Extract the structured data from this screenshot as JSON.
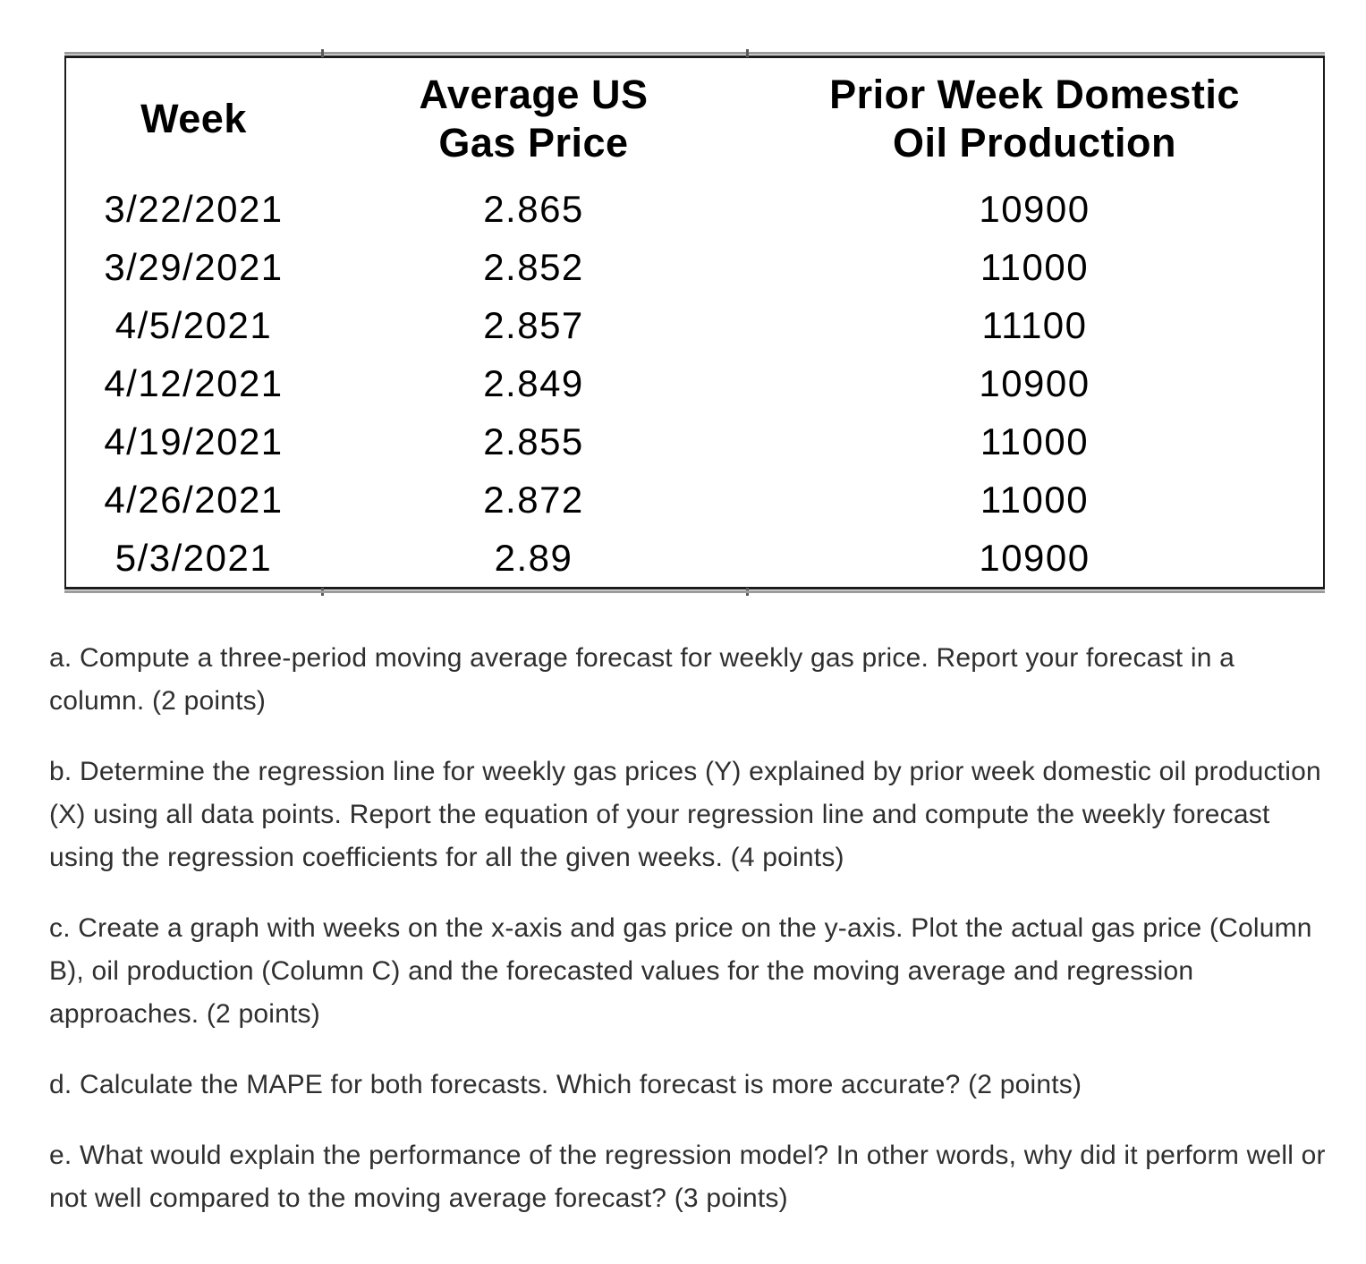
{
  "table": {
    "headers": [
      "Week",
      "Average US\nGas Price",
      "Prior Week Domestic\nOil Production"
    ],
    "rows": [
      [
        "3/22/2021",
        "2.865",
        "10900"
      ],
      [
        "3/29/2021",
        "2.852",
        "11000"
      ],
      [
        "4/5/2021",
        "2.857",
        "11100"
      ],
      [
        "4/12/2021",
        "2.849",
        "10900"
      ],
      [
        "4/19/2021",
        "2.855",
        "11000"
      ],
      [
        "4/26/2021",
        "2.872",
        "11000"
      ],
      [
        "5/3/2021",
        "2.89",
        "10900"
      ]
    ]
  },
  "questions": [
    "a. Compute a three-period moving average forecast for weekly gas price. Report your forecast in a column. (2 points)",
    "b. Determine the regression line for weekly gas prices (Y) explained by prior week domestic oil production (X) using all data points. Report the equation of your regression line and compute the weekly forecast using the regression coefficients for all the given weeks. (4 points)",
    "c. Create a graph with weeks on the x-axis and gas price on the y-axis. Plot the actual gas price (Column B), oil production (Column C) and the forecasted values for the moving average and regression approaches. (2 points)",
    "d. Calculate the MAPE for both forecasts. Which forecast is more accurate? (2 points)",
    "e. What would explain the performance of the regression model? In other words, why did it perform well or not well compared to the moving average forecast? (3 points)"
  ],
  "colors": {
    "table_text": "#000000",
    "table_border": "#1b1b1b",
    "body_text": "#2f2f2f",
    "background": "#ffffff"
  }
}
